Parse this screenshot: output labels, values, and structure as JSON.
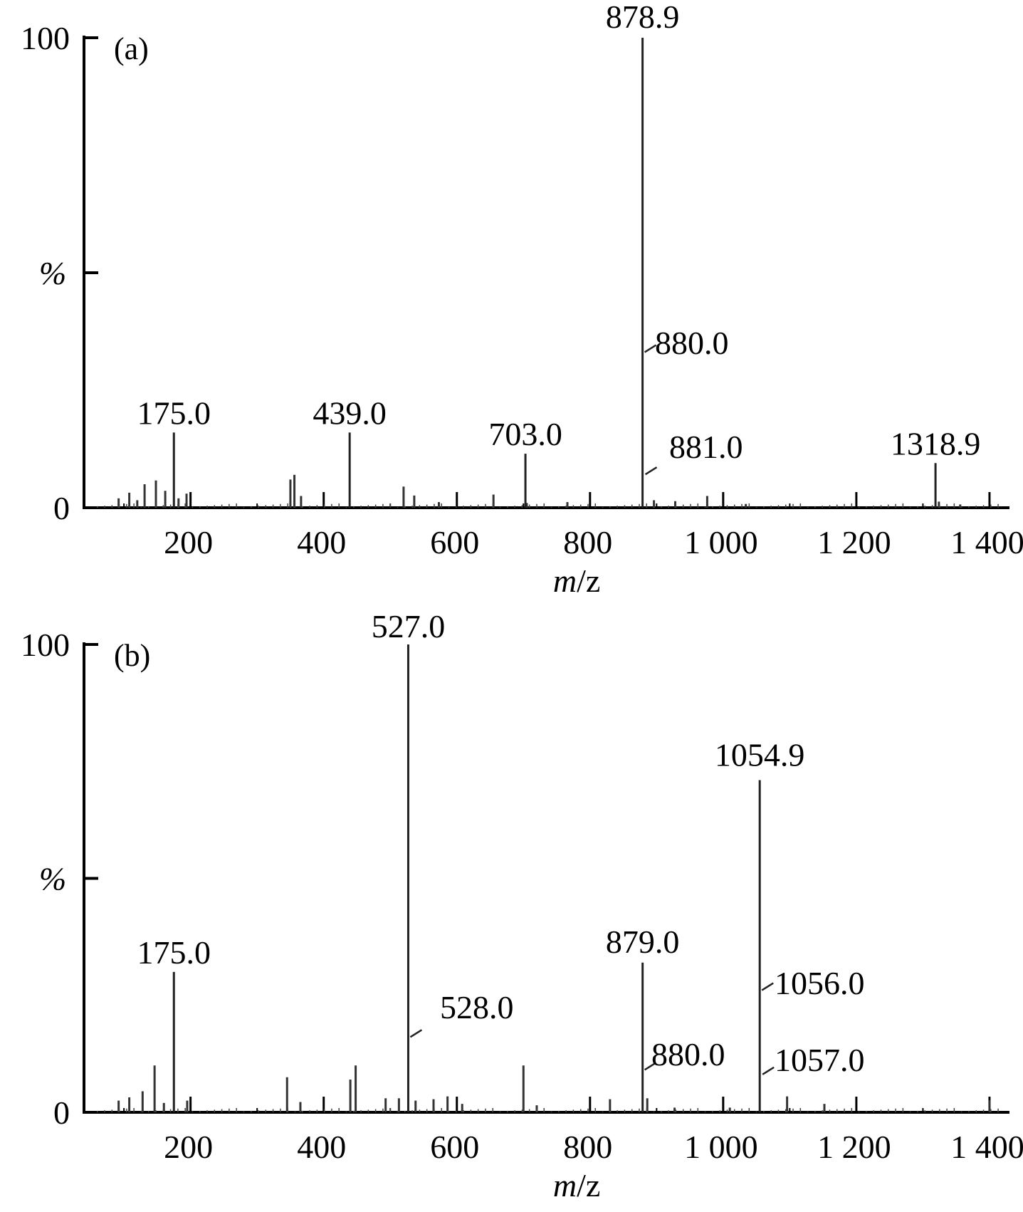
{
  "chart_data": [
    {
      "type": "bar",
      "panel_label": "(a)",
      "xlabel_italic": "m",
      "xlabel_rest": "/z",
      "ylabel": "%",
      "xlim": [
        40,
        1430
      ],
      "ylim": [
        0,
        100
      ],
      "x_ticks": [
        {
          "value": 200,
          "label": "200"
        },
        {
          "value": 400,
          "label": "400"
        },
        {
          "value": 600,
          "label": "600"
        },
        {
          "value": 800,
          "label": "800"
        },
        {
          "value": 1000,
          "label": "1 000"
        },
        {
          "value": 1200,
          "label": "1 200"
        },
        {
          "value": 1400,
          "label": "1 400"
        }
      ],
      "y_ticks": [
        {
          "value": 0,
          "label": "0"
        },
        {
          "value": 50,
          "label": ""
        },
        {
          "value": 100,
          "label": "100"
        }
      ],
      "labeled_peaks": [
        {
          "x": 878.9,
          "y": 100,
          "label": "878.9"
        },
        {
          "x": 880.0,
          "y": 34,
          "label": "880.0"
        },
        {
          "x": 881.0,
          "y": 8,
          "label": "881.0"
        },
        {
          "x": 175.0,
          "y": 16,
          "label": "175.0"
        },
        {
          "x": 439.0,
          "y": 16,
          "label": "439.0"
        },
        {
          "x": 703.0,
          "y": 11.5,
          "label": "703.0"
        },
        {
          "x": 1318.9,
          "y": 9.5,
          "label": "1318.9"
        }
      ],
      "minor_peaks": [
        {
          "x": 92,
          "y": 2
        },
        {
          "x": 108,
          "y": 3.2
        },
        {
          "x": 120,
          "y": 1.6
        },
        {
          "x": 131,
          "y": 5
        },
        {
          "x": 148,
          "y": 5.8
        },
        {
          "x": 162,
          "y": 3.6
        },
        {
          "x": 182,
          "y": 2
        },
        {
          "x": 194,
          "y": 3
        },
        {
          "x": 350,
          "y": 6
        },
        {
          "x": 356,
          "y": 7
        },
        {
          "x": 366,
          "y": 2.5
        },
        {
          "x": 520,
          "y": 4.5
        },
        {
          "x": 536,
          "y": 2.6
        },
        {
          "x": 573,
          "y": 1.2
        },
        {
          "x": 655,
          "y": 2.8
        },
        {
          "x": 705,
          "y": 1
        },
        {
          "x": 766,
          "y": 1.2
        },
        {
          "x": 896,
          "y": 1.6
        },
        {
          "x": 928,
          "y": 1.4
        },
        {
          "x": 976,
          "y": 2.5
        },
        {
          "x": 1034,
          "y": 0.8
        },
        {
          "x": 1324,
          "y": 1.3
        },
        {
          "x": 1356,
          "y": 0.7
        }
      ]
    },
    {
      "type": "bar",
      "panel_label": "(b)",
      "xlabel_italic": "m",
      "xlabel_rest": "/z",
      "ylabel": "%",
      "xlim": [
        40,
        1430
      ],
      "ylim": [
        0,
        100
      ],
      "x_ticks": [
        {
          "value": 200,
          "label": "200"
        },
        {
          "value": 400,
          "label": "400"
        },
        {
          "value": 600,
          "label": "600"
        },
        {
          "value": 800,
          "label": "800"
        },
        {
          "value": 1000,
          "label": "1 000"
        },
        {
          "value": 1200,
          "label": "1 200"
        },
        {
          "value": 1400,
          "label": "1 400"
        }
      ],
      "y_ticks": [
        {
          "value": 0,
          "label": "0"
        },
        {
          "value": 50,
          "label": ""
        },
        {
          "value": 100,
          "label": "100"
        }
      ],
      "labeled_peaks": [
        {
          "x": 527.0,
          "y": 100,
          "label": "527.0"
        },
        {
          "x": 528.0,
          "y": 17,
          "label": "528.0"
        },
        {
          "x": 1054.9,
          "y": 71,
          "label": "1054.9"
        },
        {
          "x": 1056.0,
          "y": 27,
          "label": "1056.0"
        },
        {
          "x": 1057.0,
          "y": 9,
          "label": "1057.0"
        },
        {
          "x": 879.0,
          "y": 32,
          "label": "879.0"
        },
        {
          "x": 880.0,
          "y": 10,
          "label": "880.0"
        },
        {
          "x": 175.0,
          "y": 30,
          "label": "175.0"
        }
      ],
      "minor_peaks": [
        {
          "x": 92,
          "y": 2.5
        },
        {
          "x": 108,
          "y": 3.2
        },
        {
          "x": 128,
          "y": 4.5
        },
        {
          "x": 146,
          "y": 10
        },
        {
          "x": 160,
          "y": 2
        },
        {
          "x": 195,
          "y": 2.5
        },
        {
          "x": 345,
          "y": 7.5
        },
        {
          "x": 365,
          "y": 2.2
        },
        {
          "x": 440,
          "y": 7
        },
        {
          "x": 448,
          "y": 10
        },
        {
          "x": 493,
          "y": 3
        },
        {
          "x": 513,
          "y": 3
        },
        {
          "x": 538,
          "y": 2.5
        },
        {
          "x": 565,
          "y": 2.8
        },
        {
          "x": 586,
          "y": 3.4
        },
        {
          "x": 608,
          "y": 1.8
        },
        {
          "x": 700,
          "y": 10
        },
        {
          "x": 720,
          "y": 1.5
        },
        {
          "x": 830,
          "y": 2.8
        },
        {
          "x": 886,
          "y": 3
        },
        {
          "x": 927,
          "y": 1
        },
        {
          "x": 1010,
          "y": 1
        },
        {
          "x": 1096,
          "y": 3.4
        },
        {
          "x": 1152,
          "y": 1.8
        },
        {
          "x": 1400,
          "y": 2.6
        }
      ]
    }
  ]
}
